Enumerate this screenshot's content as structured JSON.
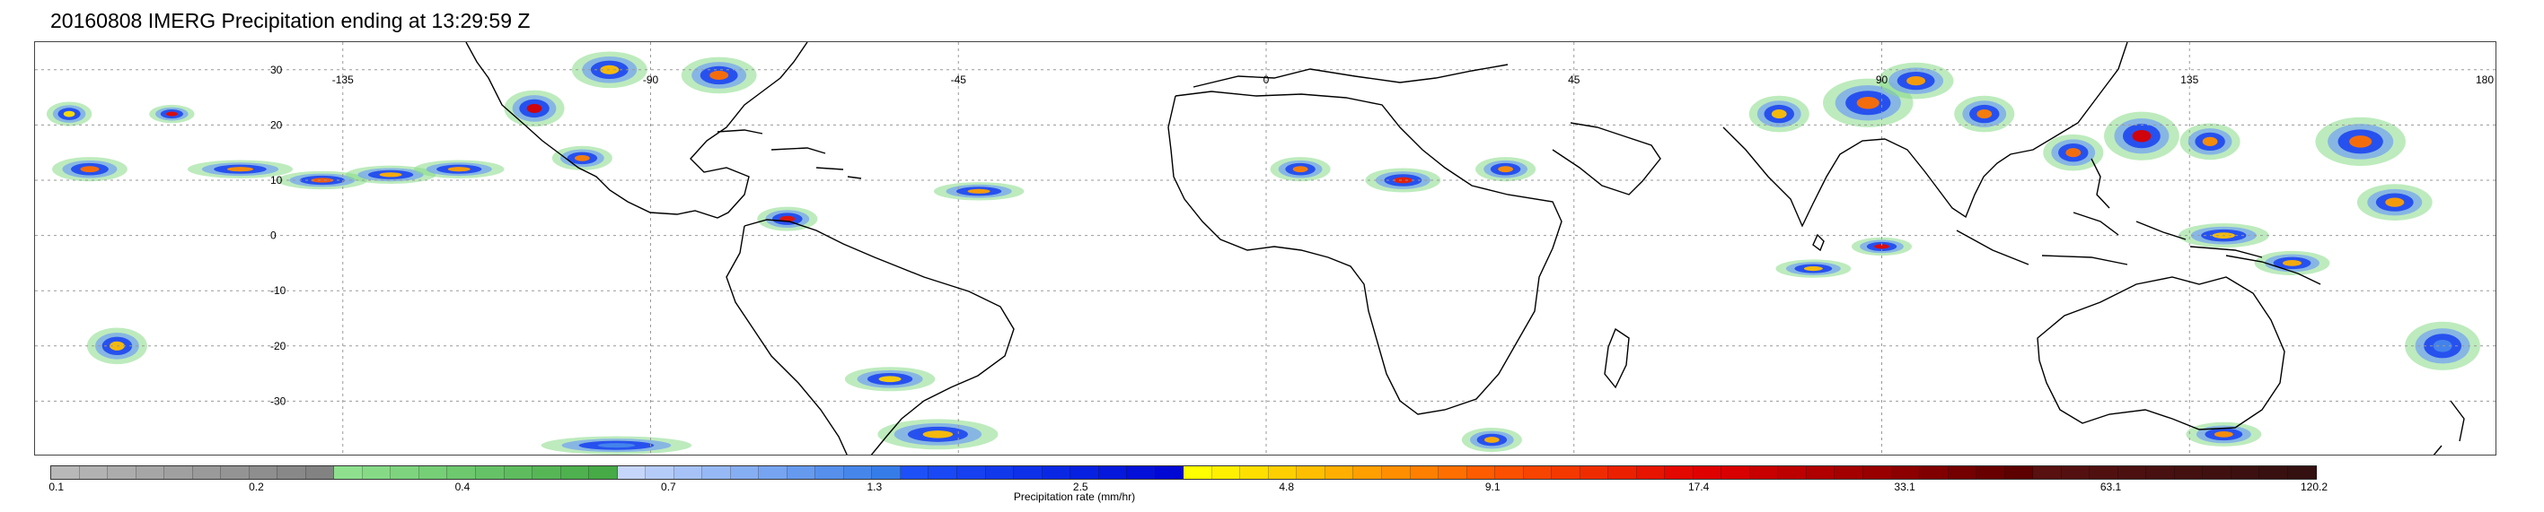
{
  "title": "20160808 IMERG Precipitation ending at 13:29:59 Z",
  "map": {
    "projection": "equirectangular",
    "lon_range": [
      -180,
      180
    ],
    "lat_range": [
      -40,
      35
    ],
    "lat_labels": [
      "30",
      "20",
      "10",
      "0",
      "-10",
      "-20",
      "-30"
    ],
    "lat_values": [
      30,
      20,
      10,
      0,
      -10,
      -20,
      -30
    ],
    "lon_labels": [
      "-135",
      "-90",
      "-45",
      "0",
      "45",
      "90",
      "135",
      "180"
    ],
    "lon_values": [
      -135,
      -90,
      -45,
      0,
      45,
      90,
      135,
      180
    ],
    "gridlines": "dashed",
    "coastline_color": "#000000"
  },
  "colorbar": {
    "label": "Precipitation rate (mm/hr)",
    "tick_labels": [
      "0.1",
      "0.2",
      "0.4",
      "0.7",
      "1.3",
      "2.5",
      "4.8",
      "9.1",
      "17.4",
      "33.1",
      "63.1",
      "120.2"
    ],
    "colors": [
      "#b8b8b8",
      "#b2b2b2",
      "#acacac",
      "#a6a6a6",
      "#a0a0a0",
      "#9a9a9a",
      "#949494",
      "#8e8e8e",
      "#888888",
      "#828282",
      "#8ee08e",
      "#86da86",
      "#7ed47e",
      "#76ce76",
      "#6ec86e",
      "#66c266",
      "#5ebc5e",
      "#56b656",
      "#4eb04e",
      "#46aa46",
      "#c6d6fa",
      "#b6ccf8",
      "#a6c2f6",
      "#96b8f4",
      "#86aef2",
      "#76a4f0",
      "#669aee",
      "#5690ec",
      "#4686ea",
      "#367ce8",
      "#1e50f8",
      "#1a48f4",
      "#1640f0",
      "#1238ec",
      "#0e30e8",
      "#0a28e4",
      "#0820e0",
      "#0618dc",
      "#0410d8",
      "#0208d4",
      "#ffff00",
      "#ffef00",
      "#ffdf00",
      "#ffcf00",
      "#ffbf00",
      "#ffaf00",
      "#ff9f00",
      "#ff8f00",
      "#ff7f00",
      "#ff6f00",
      "#ff5c00",
      "#fb5000",
      "#f74400",
      "#f33800",
      "#ef2c00",
      "#eb2000",
      "#e71400",
      "#e30800",
      "#df0000",
      "#d80000",
      "#c80000",
      "#bc0000",
      "#b00000",
      "#a40000",
      "#980000",
      "#8c0000",
      "#800000",
      "#740000",
      "#680000",
      "#5c0000",
      "#581010",
      "#541010",
      "#501010",
      "#4c1010",
      "#481010",
      "#441010",
      "#401010",
      "#3c1010",
      "#381010",
      "#341010"
    ]
  },
  "precipitation_cells": [
    {
      "lon": -175,
      "lat": 22,
      "rx": 3,
      "ry": 2,
      "peak": "#ffdf00"
    },
    {
      "lon": -172,
      "lat": 12,
      "rx": 5,
      "ry": 2,
      "peak": "#ff6f00"
    },
    {
      "lon": -168,
      "lat": -20,
      "rx": 4,
      "ry": 3,
      "peak": "#ffbf00"
    },
    {
      "lon": -160,
      "lat": 22,
      "rx": 3,
      "ry": 1.5,
      "peak": "#e30800"
    },
    {
      "lon": -150,
      "lat": 12,
      "rx": 7,
      "ry": 1.5,
      "peak": "#ff8f00"
    },
    {
      "lon": -138,
      "lat": 10,
      "rx": 6,
      "ry": 1.5,
      "peak": "#ff5c00"
    },
    {
      "lon": -128,
      "lat": 11,
      "rx": 6,
      "ry": 1.5,
      "peak": "#ffaf00"
    },
    {
      "lon": -118,
      "lat": 12,
      "rx": 6,
      "ry": 1.5,
      "peak": "#ff9f00"
    },
    {
      "lon": -107,
      "lat": 23,
      "rx": 4,
      "ry": 3,
      "peak": "#d80000"
    },
    {
      "lon": -100,
      "lat": 14,
      "rx": 4,
      "ry": 2,
      "peak": "#ff7f00"
    },
    {
      "lon": -96,
      "lat": 30,
      "rx": 5,
      "ry": 3,
      "peak": "#ffbf00"
    },
    {
      "lon": -80,
      "lat": 29,
      "rx": 5,
      "ry": 3,
      "peak": "#ff6f00"
    },
    {
      "lon": -70,
      "lat": 3,
      "rx": 4,
      "ry": 2,
      "peak": "#e71400"
    },
    {
      "lon": -42,
      "lat": 8,
      "rx": 6,
      "ry": 1.5,
      "peak": "#ff9f00"
    },
    {
      "lon": -55,
      "lat": -26,
      "rx": 6,
      "ry": 2,
      "peak": "#ffcf00"
    },
    {
      "lon": -48,
      "lat": -36,
      "rx": 8,
      "ry": 2.5,
      "peak": "#ffbf00"
    },
    {
      "lon": -95,
      "lat": -38,
      "rx": 10,
      "ry": 1.5,
      "peak": "#4686ea"
    },
    {
      "lon": 5,
      "lat": 12,
      "rx": 4,
      "ry": 2,
      "peak": "#ff7f00"
    },
    {
      "lon": 20,
      "lat": 10,
      "rx": 5,
      "ry": 2,
      "peak": "#eb2000"
    },
    {
      "lon": 35,
      "lat": 12,
      "rx": 4,
      "ry": 2,
      "peak": "#ff8f00"
    },
    {
      "lon": 33,
      "lat": -37,
      "rx": 4,
      "ry": 2,
      "peak": "#ffaf00"
    },
    {
      "lon": 75,
      "lat": 22,
      "rx": 4,
      "ry": 3,
      "peak": "#ffbf00"
    },
    {
      "lon": 88,
      "lat": 24,
      "rx": 6,
      "ry": 4,
      "peak": "#ff6f00"
    },
    {
      "lon": 95,
      "lat": 28,
      "rx": 5,
      "ry": 3,
      "peak": "#ff9f00"
    },
    {
      "lon": 105,
      "lat": 22,
      "rx": 4,
      "ry": 3,
      "peak": "#ff7f00"
    },
    {
      "lon": 80,
      "lat": -6,
      "rx": 5,
      "ry": 1.5,
      "peak": "#ffbf00"
    },
    {
      "lon": 90,
      "lat": -2,
      "rx": 4,
      "ry": 1.5,
      "peak": "#e30800"
    },
    {
      "lon": 118,
      "lat": 15,
      "rx": 4,
      "ry": 3,
      "peak": "#ff6f00"
    },
    {
      "lon": 128,
      "lat": 18,
      "rx": 5,
      "ry": 4,
      "peak": "#d80000"
    },
    {
      "lon": 138,
      "lat": 17,
      "rx": 4,
      "ry": 3,
      "peak": "#ff8f00"
    },
    {
      "lon": 160,
      "lat": 17,
      "rx": 6,
      "ry": 4,
      "peak": "#ff6f00"
    },
    {
      "lon": 165,
      "lat": 6,
      "rx": 5,
      "ry": 3,
      "peak": "#ff9f00"
    },
    {
      "lon": 140,
      "lat": 0,
      "rx": 6,
      "ry": 2,
      "peak": "#ffbf00"
    },
    {
      "lon": 150,
      "lat": -5,
      "rx": 5,
      "ry": 2,
      "peak": "#ffaf00"
    },
    {
      "lon": 172,
      "lat": -20,
      "rx": 5,
      "ry": 4,
      "peak": "#4686ea"
    },
    {
      "lon": 140,
      "lat": -36,
      "rx": 5,
      "ry": 2,
      "peak": "#ff8f00"
    }
  ]
}
